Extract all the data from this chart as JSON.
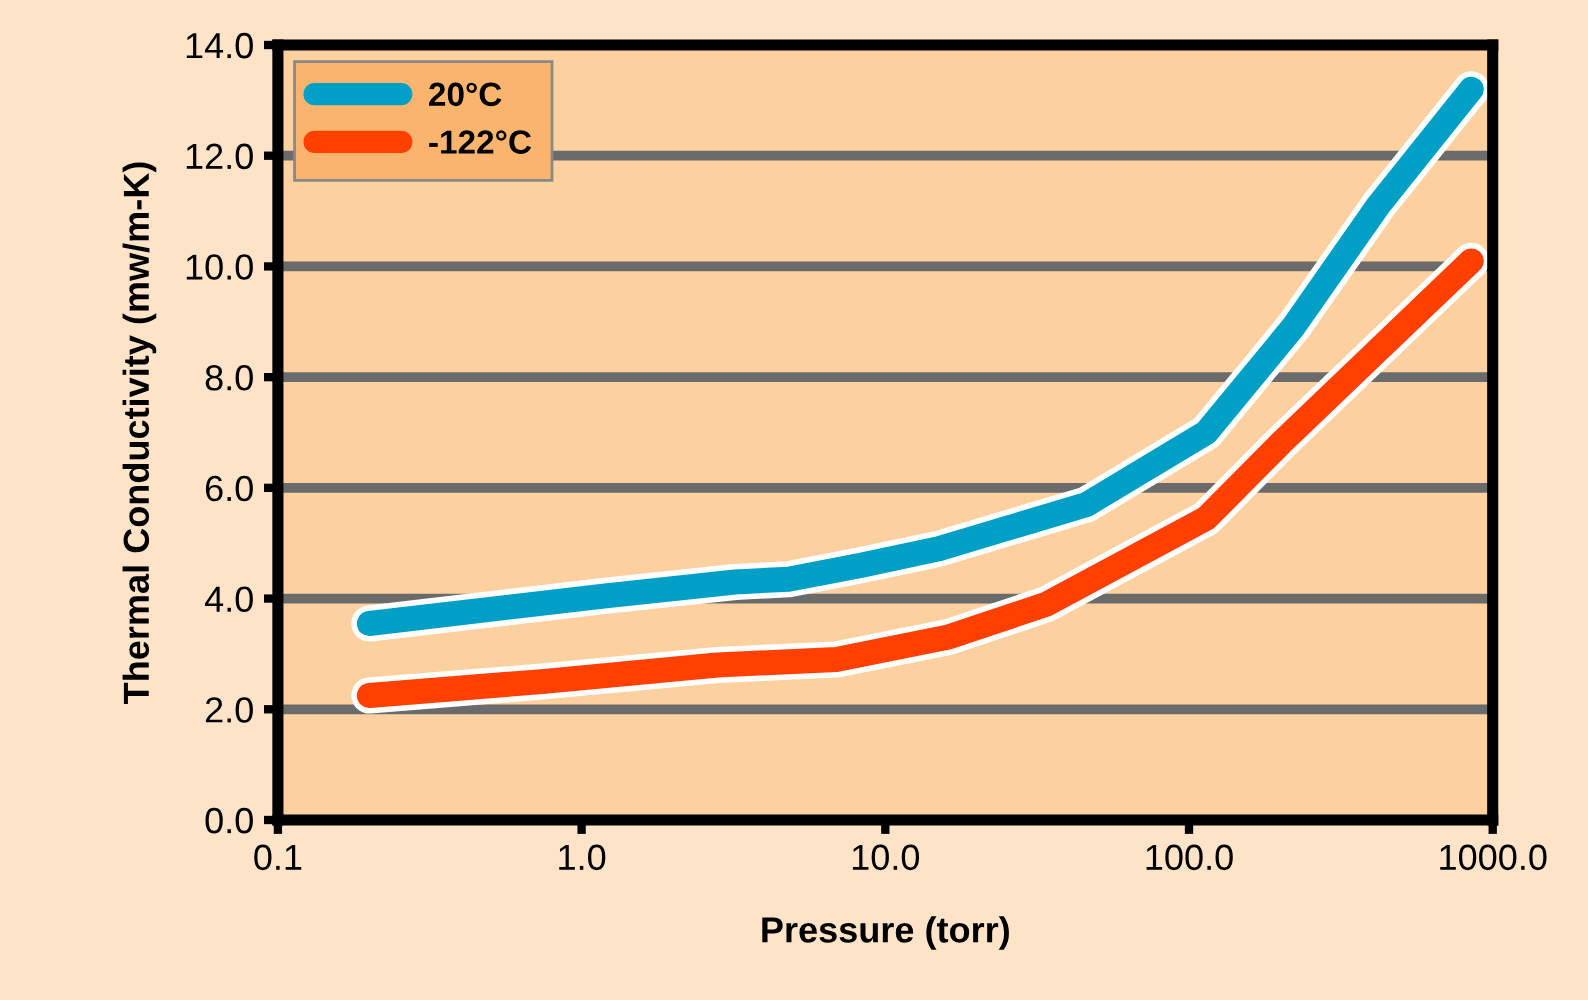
{
  "chart_data": {
    "type": "line",
    "xlabel": "Pressure (torr)",
    "ylabel": "Thermal Conductivity (mw/m-K)",
    "log": "x",
    "grid": "y",
    "legend": "top left",
    "marker": "none",
    "line_style": "solid",
    "xlim": [
      0.1,
      1000
    ],
    "ylim": [
      0,
      14
    ],
    "xticks": [
      {
        "value": 0.1,
        "label": "0.1"
      },
      {
        "value": 1,
        "label": "1.0"
      },
      {
        "value": 10,
        "label": "10.0"
      },
      {
        "value": 100,
        "label": "100.0"
      },
      {
        "value": 1000,
        "label": "1000.0"
      }
    ],
    "yticks": [
      {
        "value": 0,
        "label": "0.0"
      },
      {
        "value": 2,
        "label": "2.0"
      },
      {
        "value": 4,
        "label": "4.0"
      },
      {
        "value": 6,
        "label": "6.0"
      },
      {
        "value": 8,
        "label": "8.0"
      },
      {
        "value": 10,
        "label": "10.0"
      },
      {
        "value": 12,
        "label": "12.0"
      },
      {
        "value": 14,
        "label": "14.0"
      }
    ],
    "series": [
      {
        "name": "20°C",
        "color": "#00a0c6",
        "x": [
          0.2,
          1.2,
          3.2,
          4.8,
          8.3,
          15,
          46,
          114,
          220,
          420,
          850
        ],
        "values": [
          3.55,
          4.05,
          4.3,
          4.35,
          4.6,
          4.9,
          5.7,
          7.0,
          8.9,
          11.1,
          13.2
        ]
      },
      {
        "name": "-122°C",
        "color": "#ff4000",
        "x": [
          0.2,
          0.74,
          2.8,
          6.9,
          16,
          34,
          114,
          200,
          850
        ],
        "values": [
          2.25,
          2.5,
          2.8,
          2.9,
          3.3,
          3.9,
          5.45,
          6.8,
          10.1
        ]
      }
    ]
  }
}
